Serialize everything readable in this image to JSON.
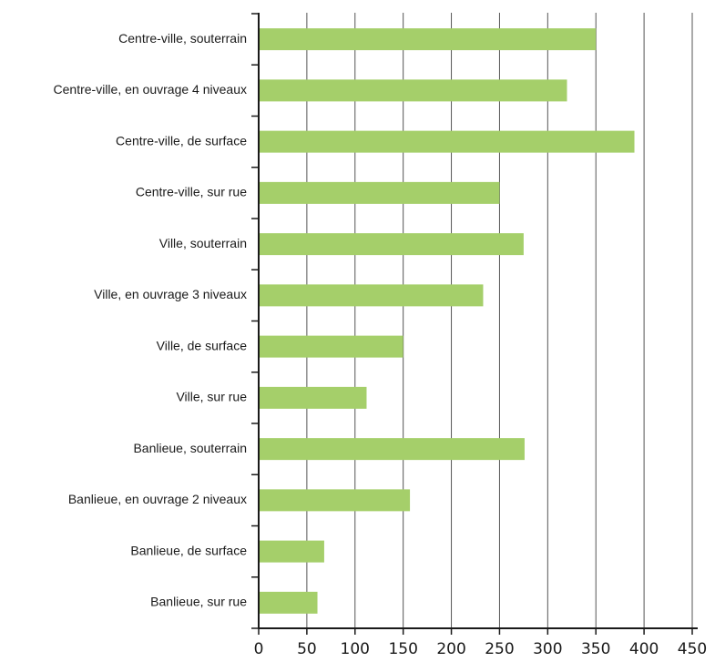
{
  "chart_data": {
    "type": "bar",
    "orientation": "horizontal",
    "categories": [
      "Centre-ville, souterrain",
      "Centre-ville, en ouvrage 4 niveaux",
      "Centre-ville, de surface",
      "Centre-ville, sur rue",
      "Ville, souterrain",
      "Ville, en ouvrage 3 niveaux",
      "Ville, de surface",
      "Ville, sur rue",
      "Banlieue, souterrain",
      "Banlieue, en ouvrage 2 niveaux",
      "Banlieue, de surface",
      "Banlieue, sur rue"
    ],
    "values": [
      350,
      320,
      390,
      250,
      275,
      233,
      150,
      112,
      276,
      157,
      68,
      61
    ],
    "xlim": [
      0,
      450
    ],
    "xticks": [
      0,
      50,
      100,
      150,
      200,
      250,
      300,
      350,
      400,
      450
    ],
    "grid": true,
    "bar_color": "#a5cf6a",
    "grid_color": "#555555",
    "axis_color": "#1a1a1a",
    "title": "",
    "xlabel": "",
    "ylabel": ""
  }
}
